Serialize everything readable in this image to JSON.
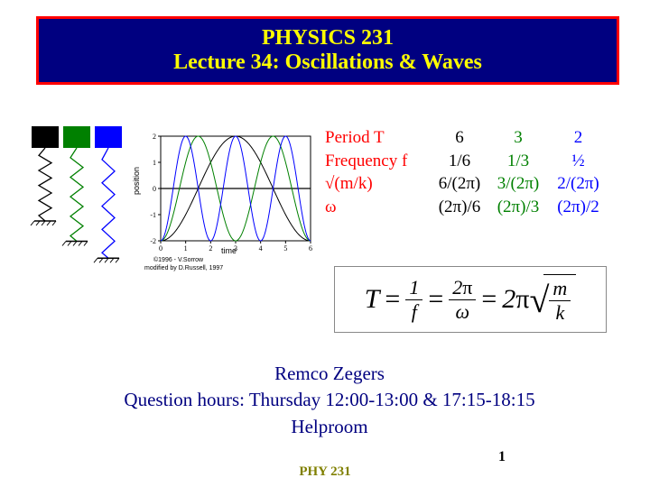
{
  "title": {
    "line1": "PHYSICS 231",
    "line2": "Lecture 34: Oscillations & Waves",
    "border_color": "#ff0000",
    "bg_color": "#000080",
    "text_color": "#ffff00",
    "fontsize": 24
  },
  "springs": {
    "type": "infographic",
    "count": 3,
    "block_colors": [
      "#000000",
      "#008000",
      "#0000ff"
    ],
    "spring_colors": [
      "#000000",
      "#008000",
      "#0000ff"
    ],
    "block_size": 30,
    "block_y": 0,
    "top_y": 30,
    "zig_width": 14,
    "lengths": [
      100,
      130,
      155
    ],
    "x_positions": [
      20,
      55,
      90
    ],
    "ground_hatch": "#000000"
  },
  "chart": {
    "type": "line",
    "xlabel": "time",
    "ylabel": "position",
    "xlim": [
      0,
      6
    ],
    "ylim": [
      -2,
      2
    ],
    "xticks": [
      0,
      1,
      2,
      3,
      4,
      5,
      6
    ],
    "yticks": [
      -2,
      -1,
      0,
      1,
      2
    ],
    "grid_color": "#e0e0e0",
    "background_color": "#ffffff",
    "axis_color": "#000000",
    "font_size": 8,
    "series": [
      {
        "color": "#000000",
        "period": 6,
        "amplitude": 2,
        "linewidth": 1
      },
      {
        "color": "#008000",
        "period": 3,
        "amplitude": 2,
        "linewidth": 1
      },
      {
        "color": "#0000ff",
        "period": 2,
        "amplitude": 2,
        "linewidth": 1
      }
    ],
    "credits_line1": "©1996 - V.Sorrow",
    "credits_line2": "modified by D.Russell, 1997"
  },
  "table": {
    "rows": [
      {
        "label": "Period T",
        "col1": "6",
        "col2": "3",
        "col3": "2"
      },
      {
        "label": "Frequency f",
        "col1": "1/6",
        "col2": "1/3",
        "col3": "½"
      },
      {
        "label": "√(m/k)",
        "col1": "6/(2π)",
        "col2": "3/(2π)",
        "col3": "2/(2π)"
      },
      {
        "label": "ω",
        "col1": "(2π)/6",
        "col2": "(2π)/3",
        "col3": "(2π)/2"
      }
    ],
    "label_color": "#ff0000",
    "col1_color": "#000000",
    "col2_color": "#008000",
    "col3_color": "#0000ff",
    "fontsize": 19
  },
  "formula": {
    "text": "T = 1/f = 2π/ω = 2π √(m/k)",
    "border_color": "#888888",
    "fontsize": 30
  },
  "instructor": {
    "name": "Remco Zegers",
    "hours": "Question hours: Thursday 12:00-13:00 & 17:15-18:15",
    "room": "Helproom",
    "color": "#000080",
    "fontsize": 21
  },
  "footer": {
    "text": "PHY 231",
    "color": "#808000"
  },
  "page_number": "1"
}
